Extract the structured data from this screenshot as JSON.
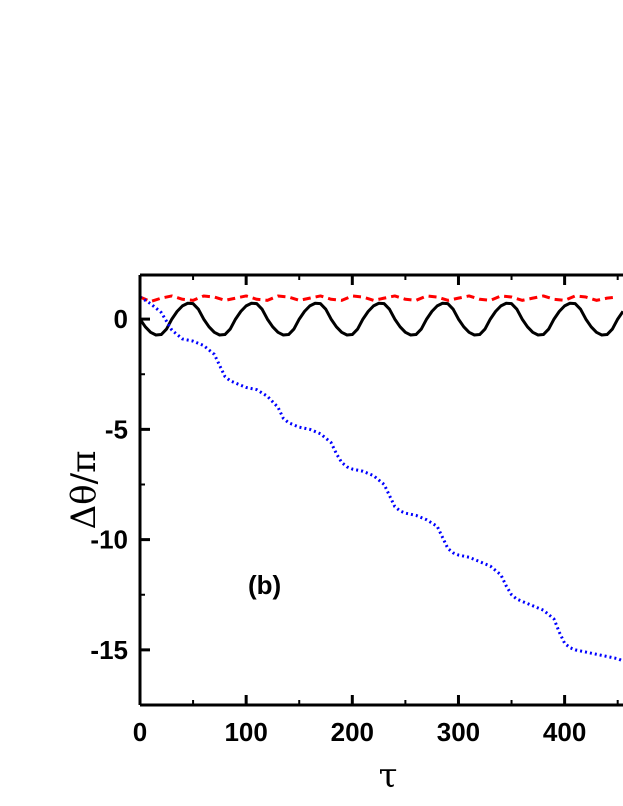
{
  "chart_data": {
    "type": "line",
    "xlabel": "τ",
    "ylabel": "Δθ/π",
    "annotation": "(b)",
    "xlim": [
      0,
      455
    ],
    "ylim": [
      -17.5,
      2
    ],
    "x_ticks": [
      0,
      100,
      200,
      300,
      400
    ],
    "x_tick_labels": [
      "0",
      "100",
      "200",
      "300",
      "400"
    ],
    "y_ticks": [
      0,
      -5,
      -10,
      -15
    ],
    "y_tick_labels": [
      "0",
      "-5",
      "-10",
      "-15"
    ],
    "grid": false,
    "legend": "none",
    "series": [
      {
        "color": "#ff0000",
        "style": "dashed",
        "x": [
          0,
          10,
          20,
          30,
          40,
          50,
          60,
          70,
          80,
          90,
          100,
          110,
          120,
          130,
          140,
          150,
          160,
          170,
          180,
          190,
          200,
          210,
          220,
          230,
          240,
          250,
          260,
          270,
          280,
          290,
          300,
          310,
          320,
          330,
          340,
          350,
          360,
          370,
          380,
          390,
          400,
          410,
          420,
          430,
          440,
          450
        ],
        "y": [
          1.0,
          0.8,
          0.95,
          1.05,
          0.9,
          0.85,
          1.05,
          1.0,
          0.85,
          0.95,
          1.05,
          0.9,
          0.85,
          1.05,
          1.0,
          0.85,
          0.95,
          1.05,
          0.9,
          0.85,
          1.05,
          1.0,
          0.85,
          0.95,
          1.05,
          0.9,
          0.85,
          1.05,
          1.0,
          0.85,
          0.95,
          1.05,
          0.9,
          0.85,
          1.05,
          1.0,
          0.85,
          0.95,
          1.05,
          0.9,
          0.85,
          1.05,
          1.0,
          0.85,
          0.95,
          1.0
        ]
      },
      {
        "color": "#000000",
        "style": "solid",
        "x": [
          0,
          5,
          10,
          15,
          20,
          25,
          30,
          35,
          40,
          45,
          50,
          55,
          60,
          65,
          70,
          75,
          80,
          85,
          90,
          95,
          100,
          105,
          110,
          115,
          120,
          125,
          130,
          135,
          140,
          145,
          150,
          155,
          160,
          165,
          170,
          175,
          180,
          185,
          190,
          195,
          200,
          205,
          210,
          215,
          220,
          225,
          230,
          235,
          240,
          245,
          250,
          255,
          260,
          265,
          270,
          275,
          280,
          285,
          290,
          295,
          300,
          305,
          310,
          315,
          320,
          325,
          330,
          335,
          340,
          345,
          350,
          355,
          360,
          365,
          370,
          375,
          380,
          385,
          390,
          395,
          400,
          405,
          410,
          415,
          420,
          425,
          430,
          435,
          440,
          445,
          450,
          455
        ],
        "y": [
          0,
          -0.35,
          -0.6,
          -0.72,
          -0.7,
          -0.45,
          0,
          0.35,
          0.6,
          0.72,
          0.7,
          0.45,
          0,
          -0.35,
          -0.6,
          -0.72,
          -0.7,
          -0.45,
          0,
          0.35,
          0.6,
          0.72,
          0.7,
          0.45,
          0,
          -0.35,
          -0.6,
          -0.72,
          -0.7,
          -0.45,
          0,
          0.35,
          0.6,
          0.72,
          0.7,
          0.45,
          0,
          -0.35,
          -0.6,
          -0.72,
          -0.7,
          -0.45,
          0,
          0.35,
          0.6,
          0.72,
          0.7,
          0.45,
          0,
          -0.35,
          -0.6,
          -0.72,
          -0.7,
          -0.45,
          0,
          0.35,
          0.6,
          0.72,
          0.7,
          0.45,
          0,
          -0.35,
          -0.6,
          -0.72,
          -0.7,
          -0.45,
          0,
          0.35,
          0.6,
          0.72,
          0.7,
          0.45,
          0,
          -0.35,
          -0.6,
          -0.72,
          -0.7,
          -0.45,
          0,
          0.35,
          0.6,
          0.72,
          0.7,
          0.45,
          0,
          -0.35,
          -0.6,
          -0.72,
          -0.7,
          -0.45,
          0,
          0.35
        ]
      },
      {
        "color": "#0000ff",
        "style": "dotted",
        "x": [
          0,
          10,
          20,
          30,
          40,
          50,
          60,
          70,
          75,
          80,
          85,
          90,
          95,
          100,
          110,
          120,
          130,
          135,
          140,
          145,
          150,
          160,
          170,
          180,
          185,
          190,
          195,
          200,
          210,
          220,
          230,
          235,
          240,
          245,
          250,
          260,
          270,
          280,
          285,
          290,
          295,
          300,
          310,
          320,
          330,
          340,
          345,
          350,
          355,
          360,
          370,
          380,
          390,
          395,
          400,
          405,
          410,
          420,
          430,
          440,
          450,
          455
        ],
        "y": [
          1.0,
          0.7,
          0.3,
          -0.5,
          -0.9,
          -1.0,
          -1.2,
          -1.6,
          -2.1,
          -2.6,
          -2.8,
          -2.9,
          -3.0,
          -3.1,
          -3.2,
          -3.5,
          -4.0,
          -4.5,
          -4.7,
          -4.8,
          -4.9,
          -5.0,
          -5.2,
          -5.6,
          -6.1,
          -6.5,
          -6.7,
          -6.8,
          -6.9,
          -7.1,
          -7.5,
          -8.0,
          -8.5,
          -8.7,
          -8.8,
          -8.9,
          -9.1,
          -9.4,
          -9.9,
          -10.4,
          -10.6,
          -10.7,
          -10.8,
          -11.0,
          -11.2,
          -11.6,
          -12.1,
          -12.5,
          -12.7,
          -12.8,
          -13.0,
          -13.2,
          -13.6,
          -14.2,
          -14.7,
          -14.9,
          -15.0,
          -15.1,
          -15.2,
          -15.3,
          -15.4,
          -15.5
        ]
      }
    ]
  }
}
